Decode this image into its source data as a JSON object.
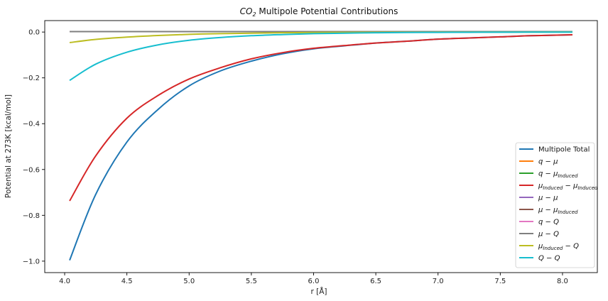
{
  "chart_data": {
    "type": "line",
    "title": {
      "prefix": "CO",
      "sub": "2",
      "suffix": " Multipole Potential Contributions"
    },
    "xlabel": "r [Å]",
    "ylabel": "Potential at 273K [kcal/mol]",
    "xlim": [
      3.84,
      8.28
    ],
    "ylim": [
      -1.05,
      0.05
    ],
    "xticks": [
      4.0,
      4.5,
      5.0,
      5.5,
      6.0,
      6.5,
      7.0,
      7.5,
      8.0
    ],
    "xtick_labels": [
      "4.0",
      "4.5",
      "5.0",
      "5.5",
      "6.0",
      "6.5",
      "7.0",
      "7.5",
      "8.0"
    ],
    "yticks": [
      0.0,
      -0.2,
      -0.4,
      -0.6,
      -0.8,
      -1.0
    ],
    "ytick_labels": [
      "0.0",
      "−0.2",
      "−0.4",
      "−0.6",
      "−0.8",
      "−1.0"
    ],
    "grid": false,
    "legend_position": "lower-right",
    "x": [
      4.04,
      4.25,
      4.5,
      4.75,
      5.0,
      5.25,
      5.5,
      5.75,
      6.0,
      6.25,
      6.5,
      6.75,
      7.0,
      7.25,
      7.5,
      7.75,
      8.08
    ],
    "series": [
      {
        "name": "Multipole Total",
        "color": "#1f77b4",
        "label": [
          {
            "t": "Multipole Total"
          }
        ],
        "values": [
          -0.996,
          -0.708,
          -0.48,
          -0.338,
          -0.235,
          -0.17,
          -0.127,
          -0.095,
          -0.073,
          -0.06,
          -0.048,
          -0.04,
          -0.031,
          -0.026,
          -0.021,
          -0.016,
          -0.012
        ]
      },
      {
        "name": "q − μ",
        "color": "#ff7f0e",
        "label": [
          {
            "t": "q − μ"
          }
        ],
        "values": [
          0.002,
          0.002,
          0.002,
          0.002,
          0.002,
          0.002,
          0.002,
          0.002,
          0.002,
          0.002,
          0.002,
          0.002,
          0.002,
          0.002,
          0.002,
          0.002,
          0.002
        ]
      },
      {
        "name": "q − μ_Induced",
        "color": "#2ca02c",
        "label": [
          {
            "t": "q − μ"
          },
          {
            "t": "Induced",
            "sub": true
          }
        ],
        "values": [
          0.002,
          0.002,
          0.002,
          0.002,
          0.002,
          0.002,
          0.002,
          0.002,
          0.002,
          0.002,
          0.002,
          0.002,
          0.002,
          0.002,
          0.002,
          0.002,
          0.002
        ]
      },
      {
        "name": "μ_Induced − μ_Induced",
        "color": "#d62728",
        "label": [
          {
            "t": "μ"
          },
          {
            "t": "Induced",
            "sub": true
          },
          {
            "t": " − μ"
          },
          {
            "t": "Induced",
            "sub": true
          }
        ],
        "values": [
          -0.737,
          -0.54,
          -0.376,
          -0.277,
          -0.205,
          -0.156,
          -0.117,
          -0.09,
          -0.071,
          -0.059,
          -0.048,
          -0.04,
          -0.031,
          -0.026,
          -0.021,
          -0.016,
          -0.012
        ]
      },
      {
        "name": "μ − μ",
        "color": "#9467bd",
        "label": [
          {
            "t": "μ − μ"
          }
        ],
        "values": [
          0.002,
          0.002,
          0.002,
          0.002,
          0.002,
          0.002,
          0.002,
          0.002,
          0.002,
          0.002,
          0.002,
          0.002,
          0.002,
          0.002,
          0.002,
          0.002,
          0.002
        ]
      },
      {
        "name": "μ − μ_Induced",
        "color": "#8c564b",
        "label": [
          {
            "t": "μ − μ"
          },
          {
            "t": "Induced",
            "sub": true
          }
        ],
        "values": [
          0.002,
          0.002,
          0.002,
          0.002,
          0.002,
          0.002,
          0.002,
          0.002,
          0.002,
          0.002,
          0.002,
          0.002,
          0.002,
          0.002,
          0.002,
          0.002,
          0.002
        ]
      },
      {
        "name": "q − Q",
        "color": "#e377c2",
        "label": [
          {
            "t": "q − Q"
          }
        ],
        "values": [
          0.002,
          0.002,
          0.002,
          0.002,
          0.002,
          0.002,
          0.002,
          0.002,
          0.002,
          0.002,
          0.002,
          0.002,
          0.002,
          0.002,
          0.002,
          0.002,
          0.002
        ]
      },
      {
        "name": "μ − Q",
        "color": "#7f7f7f",
        "label": [
          {
            "t": "μ − Q"
          }
        ],
        "values": [
          0.002,
          0.002,
          0.002,
          0.002,
          0.002,
          0.002,
          0.002,
          0.002,
          0.002,
          0.002,
          0.002,
          0.002,
          0.002,
          0.002,
          0.002,
          0.002,
          0.002
        ]
      },
      {
        "name": "μ_Induced − Q",
        "color": "#bcbd22",
        "label": [
          {
            "t": "μ"
          },
          {
            "t": "Induced",
            "sub": true
          },
          {
            "t": " − Q"
          }
        ],
        "values": [
          -0.046,
          -0.032,
          -0.022,
          -0.015,
          -0.01,
          -0.007,
          -0.005,
          -0.003,
          -0.002,
          -0.0015,
          -0.001,
          -0.0008,
          -0.0005,
          -0.0004,
          -0.0003,
          -0.0002,
          -0.0001
        ]
      },
      {
        "name": "Q − Q",
        "color": "#17becf",
        "label": [
          {
            "t": "Q − Q"
          }
        ],
        "values": [
          -0.211,
          -0.14,
          -0.088,
          -0.056,
          -0.036,
          -0.024,
          -0.016,
          -0.011,
          -0.007,
          -0.005,
          -0.003,
          -0.002,
          -0.0015,
          -0.001,
          -0.0007,
          -0.0005,
          -0.0003
        ]
      }
    ]
  }
}
